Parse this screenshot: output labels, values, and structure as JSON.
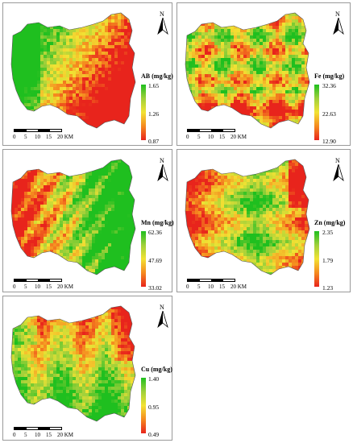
{
  "panels": [
    {
      "element": "AB",
      "title": "AB (mg/kg)",
      "max": "1.65",
      "mid": "1.26",
      "min": "0.87",
      "north": "N",
      "scale": [
        "0",
        "5",
        "10",
        "15",
        "20 KM"
      ],
      "dominant": "mixed-green-west-red-south"
    },
    {
      "element": "Fe",
      "title": "Fe (mg/kg)",
      "max": "32.36",
      "mid": "22.63",
      "min": "12.90",
      "north": "N",
      "scale": [
        "0",
        "5",
        "10",
        "15",
        "20 KM"
      ],
      "dominant": "mixed-patchy"
    },
    {
      "element": "Mn",
      "title": "Mn (mg/kg)",
      "max": "62.36",
      "mid": "47.69",
      "min": "33.02",
      "north": "N",
      "scale": [
        "0",
        "5",
        "10",
        "15",
        "20 KM"
      ],
      "dominant": "red-west-green-east"
    },
    {
      "element": "Zn",
      "title": "Zn (mg/kg)",
      "max": "2.35",
      "mid": "1.79",
      "min": "1.23",
      "north": "N",
      "scale": [
        "0",
        "5",
        "10",
        "15",
        "20 KM"
      ],
      "dominant": "green-center-red-edges"
    },
    {
      "element": "Cu",
      "title": "Cu (mg/kg)",
      "max": "1.40",
      "mid": "0.95",
      "min": "0.49",
      "north": "N",
      "scale": [
        "0",
        "5",
        "10",
        "15",
        "20 KM"
      ],
      "dominant": "green-center-orange-north"
    }
  ],
  "colors": {
    "high": "#1fbf1f",
    "mid": "#f2e233",
    "low": "#e8241c",
    "frame": "#9a9a9a"
  }
}
